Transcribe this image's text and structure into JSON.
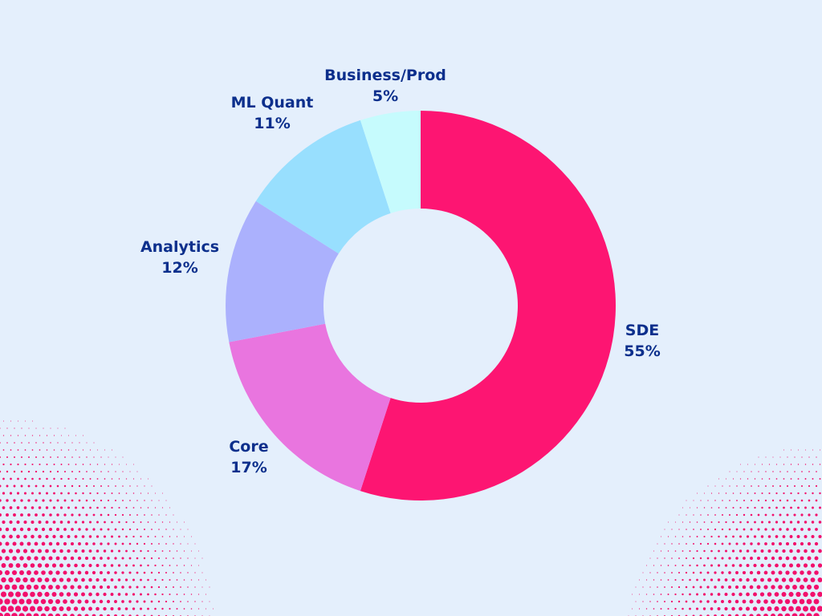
{
  "chart_data": {
    "type": "pie",
    "variant": "donut",
    "title": "",
    "legend": "none",
    "slices": [
      {
        "label": "SDE",
        "value": 55,
        "display": "55%",
        "color": "#fd1572"
      },
      {
        "label": "Core",
        "value": 17,
        "display": "17%",
        "color": "#e975df"
      },
      {
        "label": "Analytics",
        "value": 12,
        "display": "12%",
        "color": "#abb1fd"
      },
      {
        "label": "ML Quant",
        "value": 11,
        "display": "11%",
        "color": "#98dffe"
      },
      {
        "label": "Business/Prod",
        "value": 5,
        "display": "5%",
        "color": "#c6fbfd"
      }
    ],
    "label_color": "#0c2f8c",
    "start": "12 o'clock",
    "direction": "clockwise"
  },
  "background": {
    "color": "#e4effc",
    "decoration": "halftone-dots",
    "decoration_color": "#f2106c"
  }
}
